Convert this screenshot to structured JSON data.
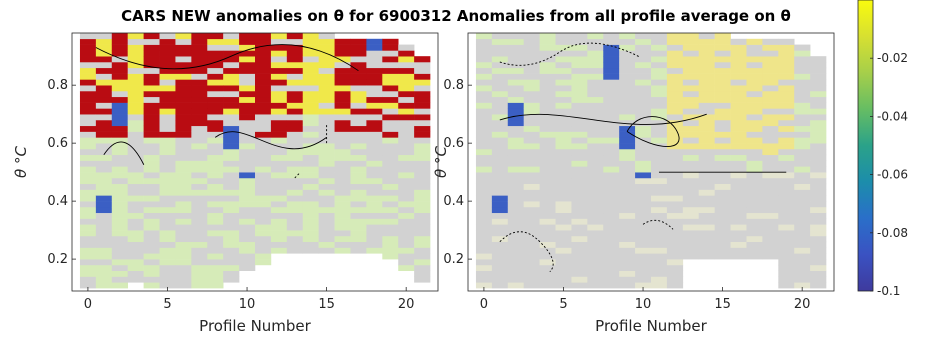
{
  "chart_data": [
    {
      "type": "heatmap",
      "title": "CARS NEW anomalies on θ for 6900312",
      "xlabel": "Profile Number",
      "ylabel": "θ °C",
      "xlim": [
        -1,
        22
      ],
      "ylim": [
        0.09,
        0.98
      ],
      "xticks": [
        0,
        5,
        10,
        15,
        20
      ],
      "yticks": [
        0.2,
        0.4,
        0.6,
        0.8
      ],
      "grid": false,
      "description_series": [
        {
          "name": "profile_top",
          "values": [
            0.97,
            0.97,
            0.97,
            0.97,
            0.97,
            0.97,
            0.97,
            0.97,
            0.97,
            0.97,
            0.97,
            0.97,
            0.97,
            0.97,
            0.97,
            0.97,
            0.95,
            0.95,
            0.95,
            0.95,
            0.93,
            0.9
          ]
        },
        {
          "name": "profile_bottom",
          "values": [
            0.1,
            0.1,
            0.1,
            0.12,
            0.1,
            0.1,
            0.1,
            0.1,
            0.1,
            0.12,
            0.16,
            0.18,
            0.22,
            0.22,
            0.22,
            0.22,
            0.22,
            0.22,
            0.22,
            0.2,
            0.16,
            0.12
          ]
        }
      ]
    },
    {
      "type": "heatmap",
      "title": "Anomalies from all profile average on θ",
      "xlabel": "Profile Number",
      "ylabel": "θ °C",
      "xlim": [
        -1,
        22
      ],
      "ylim": [
        0.09,
        0.98
      ],
      "xticks": [
        0,
        5,
        10,
        15,
        20
      ],
      "yticks": [
        0.2,
        0.4,
        0.6,
        0.8
      ],
      "grid": false,
      "description_series": [
        {
          "name": "profile_top",
          "values": [
            0.97,
            0.97,
            0.97,
            0.97,
            0.97,
            0.97,
            0.97,
            0.97,
            0.97,
            0.97,
            0.97,
            0.97,
            0.97,
            0.97,
            0.97,
            0.97,
            0.95,
            0.95,
            0.95,
            0.95,
            0.93,
            0.9
          ]
        },
        {
          "name": "profile_bottom",
          "values": [
            0.1,
            0.1,
            0.1,
            0.1,
            0.1,
            0.1,
            0.1,
            0.1,
            0.1,
            0.1,
            0.1,
            0.1,
            0.1,
            0.2,
            0.2,
            0.2,
            0.2,
            0.2,
            0.2,
            0.1,
            0.1,
            0.1
          ]
        }
      ]
    }
  ],
  "colorbar": {
    "range": [
      -0.1,
      0
    ],
    "ticks": [
      -0.02,
      -0.04,
      -0.06,
      -0.08,
      -0.1
    ],
    "tick_labels": [
      "-0.02",
      "-0.04",
      "-0.06",
      "-0.08",
      "-0.1"
    ],
    "colormap": "parula"
  },
  "title": {
    "full": "CARS NEW anomalies on θ for 6900312 Anomalies from all profile average on θ"
  },
  "colors": {
    "gray": "#d2d2d2",
    "red": "#b90c12",
    "pale_green": "#d6ebb8",
    "yellow": "#f0e84a",
    "blue": "#3b5fc4"
  }
}
